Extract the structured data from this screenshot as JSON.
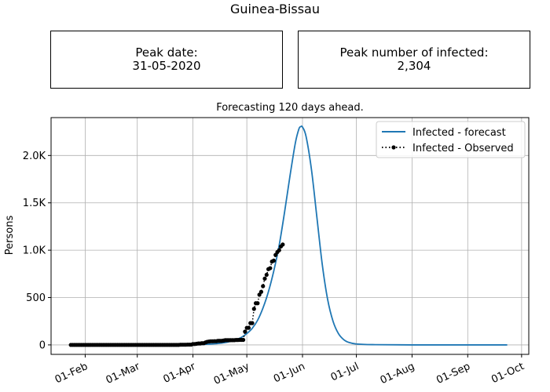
{
  "figure": {
    "title": "Guinea-Bissau",
    "peak_date": {
      "label": "Peak date:",
      "value": "31-05-2020"
    },
    "peak_infected": {
      "label": "Peak number of infected:",
      "value": "2,304"
    }
  },
  "chart_data": {
    "type": "line",
    "title": "Forecasting 120 days ahead.",
    "xlabel": "",
    "ylabel": "Persons",
    "x_axis": {
      "type": "date",
      "range": [
        "2020-01-13",
        "2020-10-05"
      ],
      "ticks": [
        {
          "date": "2020-02-01",
          "label": "01-Feb"
        },
        {
          "date": "2020-03-01",
          "label": "01-Mar"
        },
        {
          "date": "2020-04-01",
          "label": "01-Apr"
        },
        {
          "date": "2020-05-01",
          "label": "01-May"
        },
        {
          "date": "2020-06-01",
          "label": "01-Jun"
        },
        {
          "date": "2020-07-01",
          "label": "01-Jul"
        },
        {
          "date": "2020-08-01",
          "label": "01-Aug"
        },
        {
          "date": "2020-09-01",
          "label": "01-Sep"
        },
        {
          "date": "2020-10-01",
          "label": "01-Oct"
        }
      ]
    },
    "y_axis": {
      "range": [
        -100,
        2400
      ],
      "ticks": [
        {
          "value": 0,
          "label": "0"
        },
        {
          "value": 500,
          "label": "500"
        },
        {
          "value": 1000,
          "label": "1.0K"
        },
        {
          "value": 1500,
          "label": "1.5K"
        },
        {
          "value": 2000,
          "label": "2.0K"
        }
      ]
    },
    "grid": true,
    "legend": "top-right",
    "series": [
      {
        "name": "Infected - forecast",
        "style": "solid",
        "color": "#1f77b4",
        "points": [
          [
            "2020-01-24",
            0
          ],
          [
            "2020-02-15",
            0
          ],
          [
            "2020-03-10",
            0
          ],
          [
            "2020-03-25",
            1
          ],
          [
            "2020-04-05",
            4
          ],
          [
            "2020-04-10",
            8
          ],
          [
            "2020-04-15",
            15
          ],
          [
            "2020-04-20",
            28
          ],
          [
            "2020-04-25",
            55
          ],
          [
            "2020-04-28",
            80
          ],
          [
            "2020-05-01",
            120
          ],
          [
            "2020-05-04",
            175
          ],
          [
            "2020-05-07",
            260
          ],
          [
            "2020-05-10",
            390
          ],
          [
            "2020-05-13",
            560
          ],
          [
            "2020-05-16",
            780
          ],
          [
            "2020-05-19",
            1050
          ],
          [
            "2020-05-22",
            1400
          ],
          [
            "2020-05-25",
            1780
          ],
          [
            "2020-05-28",
            2130
          ],
          [
            "2020-05-30",
            2280
          ],
          [
            "2020-05-31",
            2304
          ],
          [
            "2020-06-01",
            2300
          ],
          [
            "2020-06-03",
            2200
          ],
          [
            "2020-06-06",
            1850
          ],
          [
            "2020-06-09",
            1350
          ],
          [
            "2020-06-12",
            850
          ],
          [
            "2020-06-15",
            480
          ],
          [
            "2020-06-18",
            250
          ],
          [
            "2020-06-21",
            120
          ],
          [
            "2020-06-24",
            55
          ],
          [
            "2020-06-27",
            25
          ],
          [
            "2020-07-01",
            10
          ],
          [
            "2020-07-10",
            3
          ],
          [
            "2020-08-01",
            0
          ],
          [
            "2020-09-23",
            0
          ]
        ]
      },
      {
        "name": "Infected - Observed",
        "style": "dotted-markers",
        "color": "#000000",
        "points": [
          [
            "2020-01-24",
            0
          ],
          [
            "2020-01-25",
            0
          ],
          [
            "2020-01-26",
            0
          ],
          [
            "2020-01-27",
            0
          ],
          [
            "2020-01-28",
            0
          ],
          [
            "2020-01-29",
            0
          ],
          [
            "2020-01-30",
            0
          ],
          [
            "2020-01-31",
            0
          ],
          [
            "2020-02-01",
            0
          ],
          [
            "2020-02-02",
            0
          ],
          [
            "2020-02-03",
            0
          ],
          [
            "2020-02-04",
            0
          ],
          [
            "2020-02-05",
            0
          ],
          [
            "2020-02-06",
            0
          ],
          [
            "2020-02-07",
            0
          ],
          [
            "2020-02-08",
            0
          ],
          [
            "2020-02-09",
            0
          ],
          [
            "2020-02-10",
            0
          ],
          [
            "2020-02-11",
            0
          ],
          [
            "2020-02-12",
            0
          ],
          [
            "2020-02-13",
            0
          ],
          [
            "2020-02-14",
            0
          ],
          [
            "2020-02-15",
            0
          ],
          [
            "2020-02-16",
            0
          ],
          [
            "2020-02-17",
            0
          ],
          [
            "2020-02-18",
            0
          ],
          [
            "2020-02-19",
            0
          ],
          [
            "2020-02-20",
            0
          ],
          [
            "2020-02-21",
            0
          ],
          [
            "2020-02-22",
            0
          ],
          [
            "2020-02-23",
            0
          ],
          [
            "2020-02-24",
            0
          ],
          [
            "2020-02-25",
            0
          ],
          [
            "2020-02-26",
            0
          ],
          [
            "2020-02-27",
            0
          ],
          [
            "2020-02-28",
            0
          ],
          [
            "2020-02-29",
            0
          ],
          [
            "2020-03-01",
            0
          ],
          [
            "2020-03-02",
            0
          ],
          [
            "2020-03-03",
            0
          ],
          [
            "2020-03-04",
            0
          ],
          [
            "2020-03-05",
            0
          ],
          [
            "2020-03-06",
            0
          ],
          [
            "2020-03-07",
            0
          ],
          [
            "2020-03-08",
            0
          ],
          [
            "2020-03-09",
            0
          ],
          [
            "2020-03-10",
            0
          ],
          [
            "2020-03-11",
            0
          ],
          [
            "2020-03-12",
            0
          ],
          [
            "2020-03-13",
            0
          ],
          [
            "2020-03-14",
            0
          ],
          [
            "2020-03-15",
            0
          ],
          [
            "2020-03-16",
            0
          ],
          [
            "2020-03-17",
            0
          ],
          [
            "2020-03-18",
            0
          ],
          [
            "2020-03-19",
            0
          ],
          [
            "2020-03-20",
            0
          ],
          [
            "2020-03-21",
            0
          ],
          [
            "2020-03-22",
            0
          ],
          [
            "2020-03-23",
            0
          ],
          [
            "2020-03-24",
            0
          ],
          [
            "2020-03-25",
            2
          ],
          [
            "2020-03-26",
            2
          ],
          [
            "2020-03-27",
            2
          ],
          [
            "2020-03-28",
            2
          ],
          [
            "2020-03-29",
            3
          ],
          [
            "2020-03-30",
            3
          ],
          [
            "2020-03-31",
            3
          ],
          [
            "2020-04-01",
            9
          ],
          [
            "2020-04-02",
            9
          ],
          [
            "2020-04-03",
            12
          ],
          [
            "2020-04-04",
            15
          ],
          [
            "2020-04-05",
            15
          ],
          [
            "2020-04-06",
            18
          ],
          [
            "2020-04-07",
            18
          ],
          [
            "2020-04-08",
            26
          ],
          [
            "2020-04-09",
            33
          ],
          [
            "2020-04-10",
            36
          ],
          [
            "2020-04-11",
            38
          ],
          [
            "2020-04-12",
            38
          ],
          [
            "2020-04-13",
            39
          ],
          [
            "2020-04-14",
            39
          ],
          [
            "2020-04-15",
            43
          ],
          [
            "2020-04-16",
            43
          ],
          [
            "2020-04-17",
            43
          ],
          [
            "2020-04-18",
            46
          ],
          [
            "2020-04-19",
            50
          ],
          [
            "2020-04-20",
            50
          ],
          [
            "2020-04-21",
            50
          ],
          [
            "2020-04-22",
            50
          ],
          [
            "2020-04-23",
            50
          ],
          [
            "2020-04-24",
            50
          ],
          [
            "2020-04-25",
            52
          ],
          [
            "2020-04-26",
            52
          ],
          [
            "2020-04-27",
            53
          ],
          [
            "2020-04-28",
            53
          ],
          [
            "2020-04-29",
            53
          ],
          [
            "2020-04-30",
            140
          ],
          [
            "2020-05-01",
            180
          ],
          [
            "2020-05-02",
            180
          ],
          [
            "2020-05-03",
            230
          ],
          [
            "2020-05-04",
            230
          ],
          [
            "2020-05-05",
            380
          ],
          [
            "2020-05-06",
            440
          ],
          [
            "2020-05-07",
            440
          ],
          [
            "2020-05-08",
            530
          ],
          [
            "2020-05-09",
            560
          ],
          [
            "2020-05-10",
            620
          ],
          [
            "2020-05-11",
            700
          ],
          [
            "2020-05-12",
            740
          ],
          [
            "2020-05-13",
            800
          ],
          [
            "2020-05-14",
            810
          ],
          [
            "2020-05-15",
            880
          ],
          [
            "2020-05-16",
            890
          ],
          [
            "2020-05-17",
            950
          ],
          [
            "2020-05-18",
            980
          ],
          [
            "2020-05-19",
            1000
          ],
          [
            "2020-05-20",
            1040
          ],
          [
            "2020-05-21",
            1060
          ]
        ]
      }
    ]
  }
}
